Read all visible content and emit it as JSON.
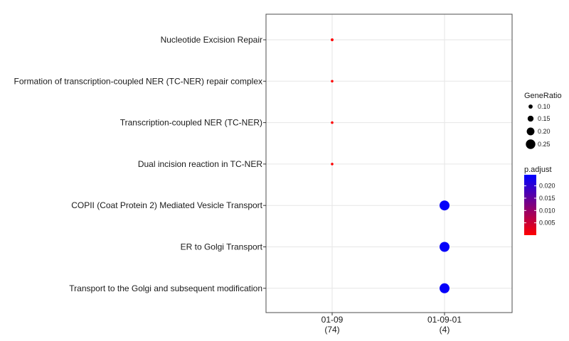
{
  "chart_data": {
    "type": "scatter",
    "title": "",
    "xlabel": "",
    "ylabel": "",
    "grid": true,
    "legend_position": "right",
    "x_categories": [
      {
        "label": "01-09",
        "count": "(74)"
      },
      {
        "label": "01-09-01",
        "count": "(4)"
      }
    ],
    "y_categories": [
      "Nucleotide Excision Repair",
      "Formation of transcription-coupled NER (TC-NER) repair complex",
      "Transcription-coupled NER (TC-NER)",
      "Dual incision reaction in TC-NER",
      "COPII (Coat Protein 2) Mediated Vesicle Transport",
      "ER to Golgi Transport",
      "Transport to the Golgi and subsequent modification"
    ],
    "points": [
      {
        "x": "01-09",
        "y": "Nucleotide Excision Repair",
        "gene_ratio": 0.07,
        "p_adjust": 0.0001
      },
      {
        "x": "01-09",
        "y": "Formation of transcription-coupled NER (TC-NER) repair complex",
        "gene_ratio": 0.04,
        "p_adjust": 0.0001
      },
      {
        "x": "01-09",
        "y": "Transcription-coupled NER (TC-NER)",
        "gene_ratio": 0.04,
        "p_adjust": 0.0001
      },
      {
        "x": "01-09",
        "y": "Dual incision reaction in TC-NER",
        "gene_ratio": 0.04,
        "p_adjust": 0.0001
      },
      {
        "x": "01-09-01",
        "y": "COPII (Coat Protein 2) Mediated Vesicle Transport",
        "gene_ratio": 0.25,
        "p_adjust": 0.024
      },
      {
        "x": "01-09-01",
        "y": "ER to Golgi Transport",
        "gene_ratio": 0.25,
        "p_adjust": 0.024
      },
      {
        "x": "01-09-01",
        "y": "Transport to the Golgi and subsequent modification",
        "gene_ratio": 0.25,
        "p_adjust": 0.024
      }
    ],
    "size_legend": {
      "title": "GeneRatio",
      "values": [
        0.1,
        0.15,
        0.2,
        0.25
      ],
      "labels": [
        "0.10",
        "0.15",
        "0.20",
        "0.25"
      ]
    },
    "color_legend": {
      "title": "p.adjust",
      "range": [
        0.0,
        0.0245
      ],
      "ticks": [
        0.005,
        0.01,
        0.015,
        0.02
      ],
      "tick_labels": [
        "0.005",
        "0.010",
        "0.015",
        "0.020"
      ],
      "low_color": "#ff0000",
      "high_color": "#0000ff"
    }
  }
}
